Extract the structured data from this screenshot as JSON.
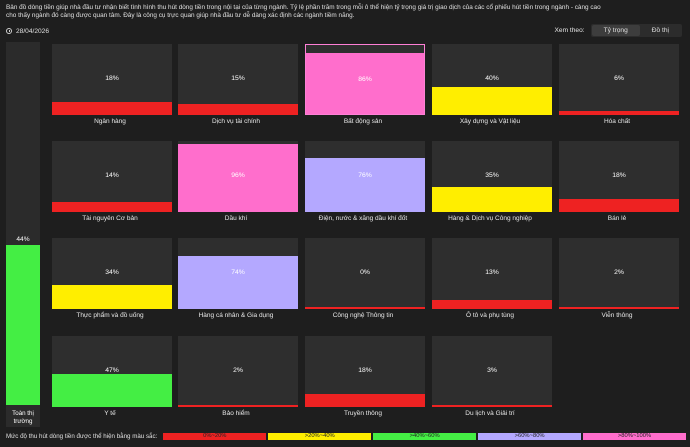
{
  "description": "Bản đồ dòng tiền giúp nhà đầu tư nhận biết tình hình thu hút dòng tiền trong nội tại của từng ngành. Tỷ lệ phần trăm trong mỗi ô thể hiện tỷ trọng giá trị giao dịch của các cổ phiếu hút tiền trong ngành - càng cao cho thấy ngành đó càng được quan tâm. Đây là công cụ trực quan giúp nhà đầu tư dễ dàng xác định các ngành tiềm năng.",
  "date": "28/04/2026",
  "view": {
    "label": "Xem theo:",
    "options": [
      "Tỷ trọng",
      "Đồ thị"
    ],
    "selected": "Tỷ trọng"
  },
  "colors": {
    "level_0_20": "#ee2222",
    "level_20_40": "#ffee00",
    "level_40_60": "#44ee44",
    "level_60_80": "#b4a8ff",
    "level_80_100": "#ff6ecc",
    "tile_bg": "#2e2e2e"
  },
  "total": {
    "label": "Toàn thị trường",
    "pct_text": "44%",
    "value": 44
  },
  "sectors": [
    {
      "name": "Ngân hàng",
      "pct_text": "18%",
      "value": 18
    },
    {
      "name": "Dịch vụ tài chính",
      "pct_text": "15%",
      "value": 15
    },
    {
      "name": "Bất động sản",
      "pct_text": "86%",
      "value": 86,
      "selected": true
    },
    {
      "name": "Xây dựng và Vật liệu",
      "pct_text": "40%",
      "value": 40
    },
    {
      "name": "Hóa chất",
      "pct_text": "6%",
      "value": 6
    },
    {
      "name": "Tài nguyên Cơ bản",
      "pct_text": "14%",
      "value": 14
    },
    {
      "name": "Dầu khí",
      "pct_text": "96%",
      "value": 96
    },
    {
      "name": "Điện, nước & xăng dầu khí đốt",
      "pct_text": "76%",
      "value": 76
    },
    {
      "name": "Hàng & Dịch vụ Công nghiệp",
      "pct_text": "35%",
      "value": 35
    },
    {
      "name": "Bán lẻ",
      "pct_text": "18%",
      "value": 18
    },
    {
      "name": "Thực phẩm và đồ uống",
      "pct_text": "34%",
      "value": 34
    },
    {
      "name": "Hàng cá nhân & Gia dụng",
      "pct_text": "74%",
      "value": 74
    },
    {
      "name": "Công nghệ Thông tin",
      "pct_text": "0%",
      "value": 0
    },
    {
      "name": "Ô tô và phụ tùng",
      "pct_text": "13%",
      "value": 13
    },
    {
      "name": "Viễn thông",
      "pct_text": "2%",
      "value": 2
    },
    {
      "name": "Y tế",
      "pct_text": "47%",
      "value": 47
    },
    {
      "name": "Bảo hiểm",
      "pct_text": "2%",
      "value": 2
    },
    {
      "name": "Truyền thông",
      "pct_text": "18%",
      "value": 18
    },
    {
      "name": "Du lịch và Giải trí",
      "pct_text": "3%",
      "value": 3
    }
  ],
  "legend": {
    "title": "Mức độ thu hút dòng tiền được thể hiện bằng màu sắc:",
    "ranges": [
      "0%~20%",
      ">20%~40%",
      ">40%~60%",
      ">60%~80%",
      ">80%~100%"
    ]
  }
}
